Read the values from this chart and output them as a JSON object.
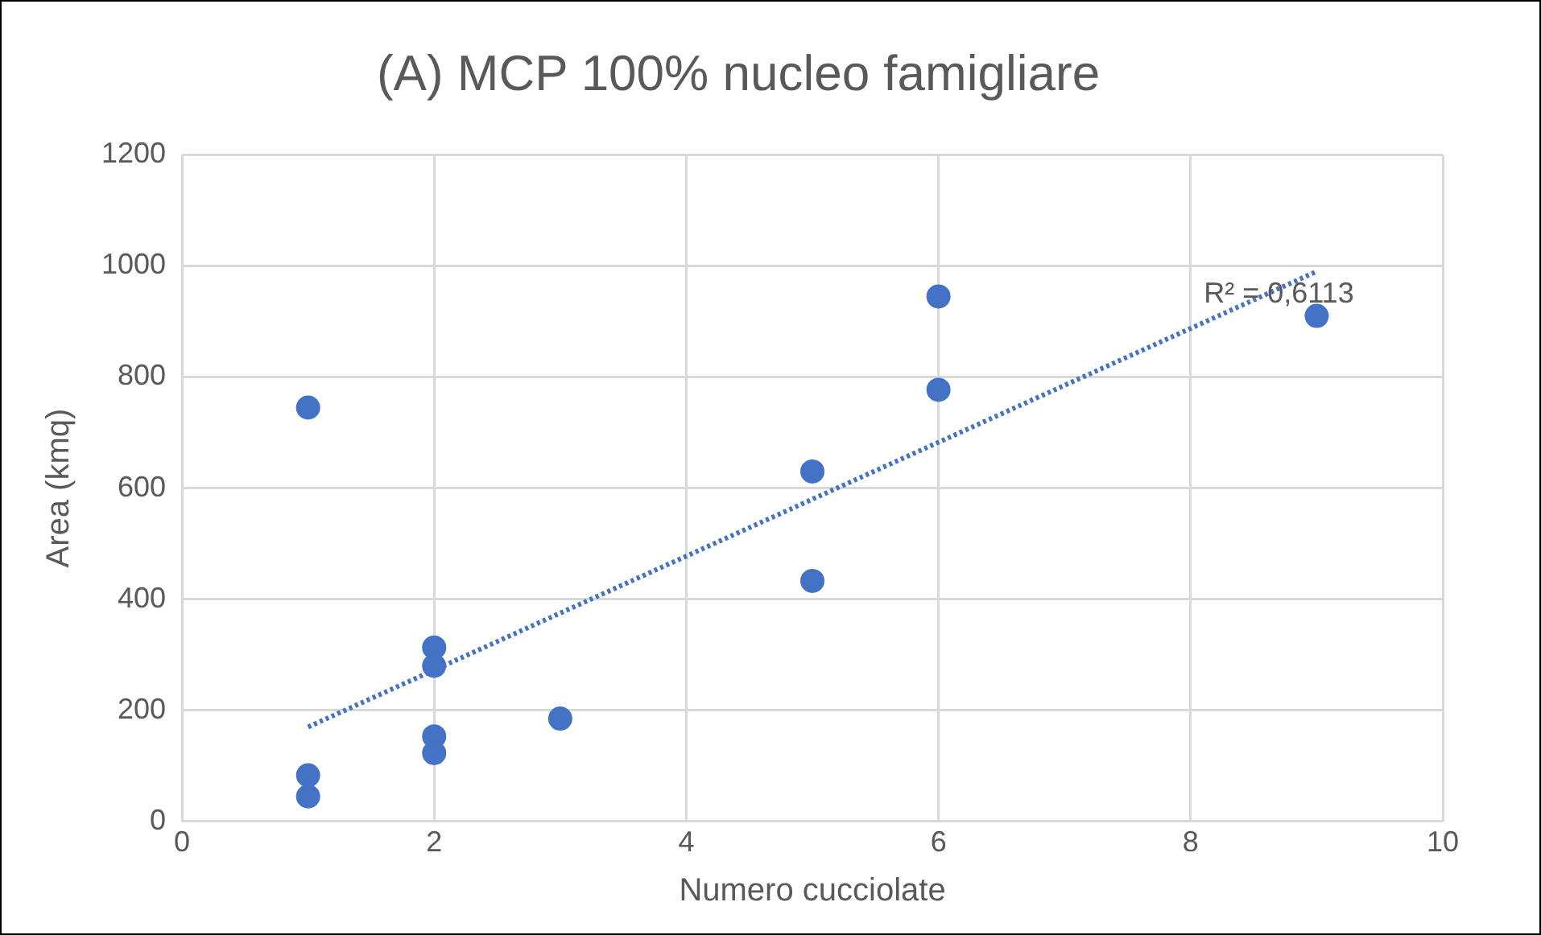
{
  "chart_data": {
    "type": "scatter",
    "title": "(A) MCP 100% nucleo famigliare",
    "xlabel": "Numero cucciolate",
    "ylabel": "Area (kmq)",
    "series": [
      {
        "color": "#4472c4",
        "marker": "circle",
        "x": [
          1,
          1,
          1,
          2,
          2,
          2,
          2,
          3,
          5,
          5,
          6,
          6,
          9
        ],
        "values": [
          745,
          83,
          45,
          313,
          280,
          153,
          123,
          185,
          630,
          433,
          945,
          777,
          910
        ]
      },
      {
        "type": "line",
        "color": "#4472c4",
        "line_style": "dotted",
        "marker": "none",
        "x": [
          1,
          9
        ],
        "values": [
          170,
          990
        ]
      }
    ],
    "xlim": [
      0,
      10
    ],
    "xticks": [
      0,
      2,
      4,
      6,
      8,
      10
    ],
    "ylim": [
      0,
      1200
    ],
    "yticks": [
      0,
      200,
      400,
      600,
      800,
      1000,
      1200
    ],
    "grid": true,
    "legend": false,
    "annotations": [
      "R² = 0,6113"
    ]
  }
}
